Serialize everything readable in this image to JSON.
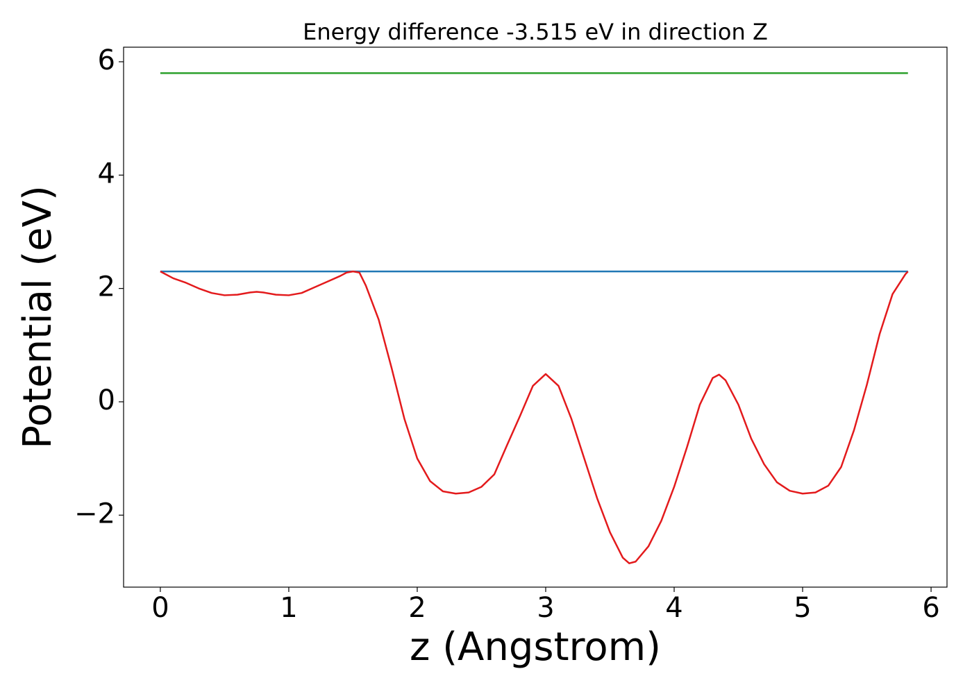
{
  "chart_data": {
    "type": "line",
    "title": "Energy difference -3.515 eV in direction Z",
    "x_label": "z (Angstrom)",
    "y_label": "Potential (eV)",
    "xlim": [
      -0.286,
      6.124
    ],
    "ylim": [
      -3.27,
      6.257
    ],
    "xticks": [
      0,
      1,
      2,
      3,
      4,
      5,
      6
    ],
    "yticks": [
      {
        "value": -2,
        "label": "−2"
      },
      0,
      2,
      4,
      6
    ],
    "series": [
      {
        "color": "#2ca02c",
        "x": [
          0,
          5.82
        ],
        "values": [
          5.8,
          5.8
        ]
      },
      {
        "color": "#1f77b4",
        "x": [
          0,
          5.82
        ],
        "values": [
          2.3,
          2.3
        ]
      },
      {
        "color": "#e31a1c",
        "x": [
          0,
          0.1,
          0.2,
          0.3,
          0.4,
          0.5,
          0.6,
          0.7,
          0.75,
          0.8,
          0.9,
          1.0,
          1.1,
          1.2,
          1.3,
          1.4,
          1.45,
          1.5,
          1.55,
          1.6,
          1.7,
          1.8,
          1.9,
          2.0,
          2.1,
          2.2,
          2.3,
          2.4,
          2.5,
          2.6,
          2.7,
          2.8,
          2.9,
          3.0,
          3.1,
          3.2,
          3.3,
          3.4,
          3.5,
          3.6,
          3.65,
          3.7,
          3.8,
          3.9,
          4.0,
          4.1,
          4.2,
          4.3,
          4.35,
          4.4,
          4.5,
          4.6,
          4.7,
          4.8,
          4.9,
          5.0,
          5.1,
          5.2,
          5.3,
          5.4,
          5.5,
          5.6,
          5.7,
          5.8,
          5.82
        ],
        "values": [
          2.3,
          2.18,
          2.1,
          2.0,
          1.92,
          1.88,
          1.89,
          1.93,
          1.94,
          1.93,
          1.89,
          1.88,
          1.92,
          2.02,
          2.12,
          2.22,
          2.28,
          2.3,
          2.28,
          2.05,
          1.45,
          0.6,
          -0.3,
          -1.0,
          -1.4,
          -1.58,
          -1.62,
          -1.6,
          -1.5,
          -1.28,
          -0.76,
          -0.25,
          0.28,
          0.49,
          0.28,
          -0.3,
          -1.0,
          -1.7,
          -2.3,
          -2.75,
          -2.85,
          -2.82,
          -2.55,
          -2.1,
          -1.5,
          -0.8,
          -0.05,
          0.42,
          0.48,
          0.38,
          -0.05,
          -0.65,
          -1.1,
          -1.42,
          -1.57,
          -1.62,
          -1.6,
          -1.48,
          -1.15,
          -0.5,
          0.3,
          1.2,
          1.9,
          2.25,
          2.3
        ]
      }
    ]
  }
}
